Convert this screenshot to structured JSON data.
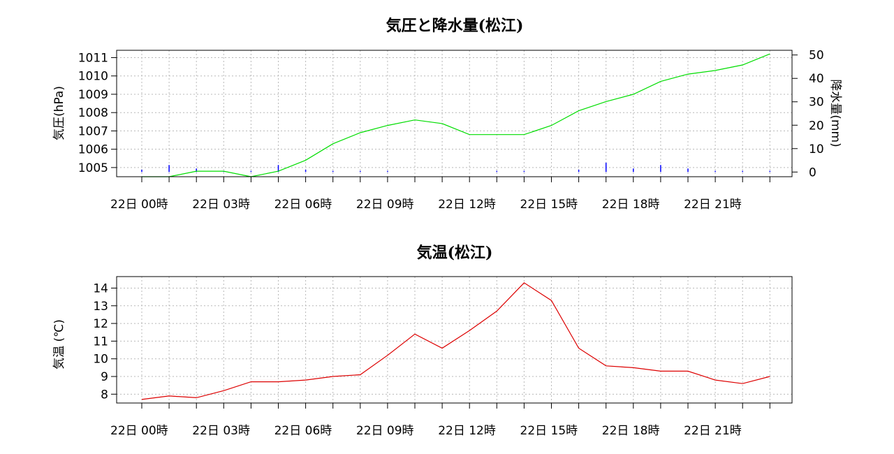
{
  "colors": {
    "pressure_line": "#00dd00",
    "precip_bar": "#0000ff",
    "temperature_line": "#dd0000",
    "grid": "#b8b8b8"
  },
  "chart_data": [
    {
      "type": "line",
      "title": "気圧と降水量(松江)",
      "ylabel": "気圧(hPa)",
      "y2label": "降水量(mm)",
      "xtick_labels": [
        "22日 00時",
        "22日 03時",
        "22日 06時",
        "22日 09時",
        "22日 12時",
        "22日 15時",
        "22日 18時",
        "22日 21時"
      ],
      "x": [
        0,
        1,
        2,
        3,
        4,
        5,
        6,
        7,
        8,
        9,
        10,
        11,
        12,
        13,
        14,
        15,
        16,
        17,
        18,
        19,
        20,
        21,
        22,
        23
      ],
      "yticks": [
        1005,
        1006,
        1007,
        1008,
        1009,
        1010,
        1011
      ],
      "ylim": [
        1004.5,
        1011.4
      ],
      "y2ticks": [
        0,
        10,
        20,
        30,
        40,
        50
      ],
      "y2lim": [
        -2,
        52
      ],
      "grid": true,
      "series": [
        {
          "type": "line",
          "axis": "left",
          "values": [
            1004.5,
            1004.5,
            1004.8,
            1004.8,
            1004.5,
            1004.8,
            1005.4,
            1006.3,
            1006.9,
            1007.3,
            1007.6,
            1007.4,
            1006.8,
            1006.8,
            1006.8,
            1007.3,
            1008.1,
            1008.6,
            1009.0,
            1009.7,
            1010.1,
            1010.3,
            1010.6,
            1011.2
          ]
        },
        {
          "type": "bar",
          "axis": "right",
          "values": [
            1,
            3,
            1.5,
            0.5,
            0.5,
            3,
            1,
            0.5,
            0.5,
            0.5,
            0,
            0,
            0,
            0.5,
            0.5,
            0,
            1,
            4,
            1.5,
            3,
            1.5,
            0.5,
            0.5,
            0.5
          ]
        }
      ]
    },
    {
      "type": "line",
      "title": "気温(松江)",
      "ylabel": "気温 (℃)",
      "xtick_labels": [
        "22日 00時",
        "22日 03時",
        "22日 06時",
        "22日 09時",
        "22日 12時",
        "22日 15時",
        "22日 18時",
        "22日 21時"
      ],
      "x": [
        0,
        1,
        2,
        3,
        4,
        5,
        6,
        7,
        8,
        9,
        10,
        11,
        12,
        13,
        14,
        15,
        16,
        17,
        18,
        19,
        20,
        21,
        22,
        23
      ],
      "yticks": [
        8,
        9,
        10,
        11,
        12,
        13,
        14
      ],
      "ylim": [
        7.5,
        14.65
      ],
      "grid": true,
      "series": [
        {
          "type": "line",
          "axis": "left",
          "values": [
            7.7,
            7.9,
            7.8,
            8.2,
            8.7,
            8.7,
            8.8,
            9.0,
            9.1,
            10.2,
            11.4,
            10.6,
            11.6,
            12.7,
            14.3,
            13.3,
            10.6,
            9.6,
            9.5,
            9.3,
            9.3,
            8.8,
            8.6,
            9.0
          ]
        }
      ]
    }
  ]
}
